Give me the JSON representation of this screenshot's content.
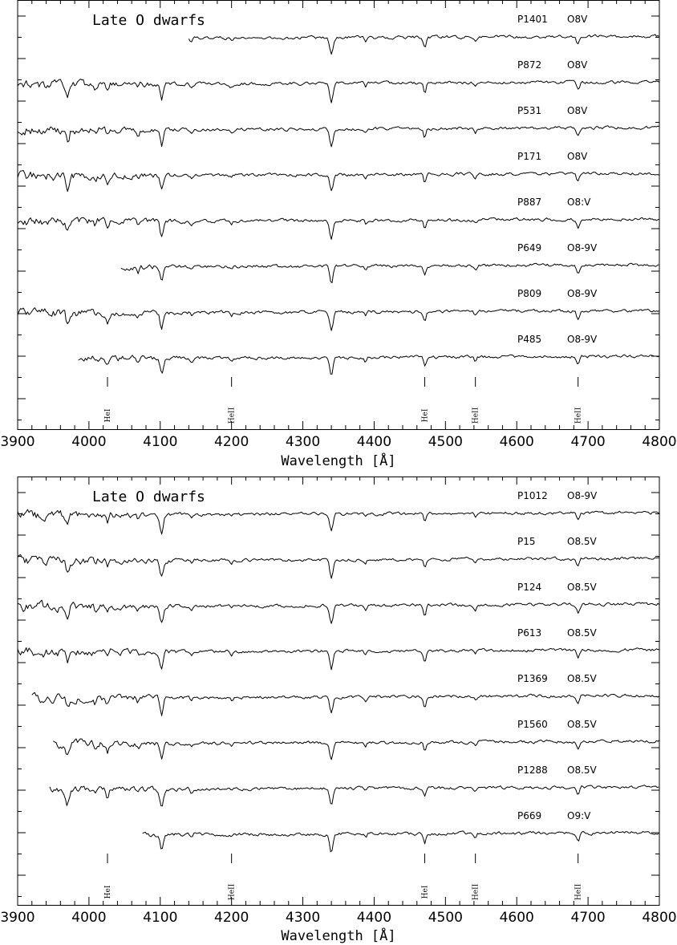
{
  "chart_data": [
    {
      "type": "line",
      "title": "Late O dwarfs",
      "xlabel": "Wavelength [Å]",
      "xlim": [
        3900,
        4800
      ],
      "xticks": [
        3900,
        4000,
        4100,
        4200,
        4300,
        4400,
        4500,
        4600,
        4700,
        4800
      ],
      "series": [
        {
          "name": "P1401",
          "spectral_type": "O8V",
          "x_start": 4140
        },
        {
          "name": "P872",
          "spectral_type": "O8V",
          "x_start": 3900
        },
        {
          "name": "P531",
          "spectral_type": "O8V",
          "x_start": 3900
        },
        {
          "name": "P171",
          "spectral_type": "O8V",
          "x_start": 3900
        },
        {
          "name": "P887",
          "spectral_type": "O8:V",
          "x_start": 3900
        },
        {
          "name": "P649",
          "spectral_type": "O8-9V",
          "x_start": 4045
        },
        {
          "name": "P809",
          "spectral_type": "O8-9V",
          "x_start": 3900
        },
        {
          "name": "P485",
          "spectral_type": "O8-9V",
          "x_start": 3985
        }
      ],
      "line_markers": [
        {
          "label": "HeI",
          "x": 4026
        },
        {
          "label": "HeII",
          "x": 4200
        },
        {
          "label": "HeI",
          "x": 4471
        },
        {
          "label": "HeII",
          "x": 4542
        },
        {
          "label": "HeII",
          "x": 4686
        }
      ]
    },
    {
      "type": "line",
      "title": "Late O dwarfs",
      "xlabel": "Wavelength [Å]",
      "xlim": [
        3900,
        4800
      ],
      "xticks": [
        3900,
        4000,
        4100,
        4200,
        4300,
        4400,
        4500,
        4600,
        4700,
        4800
      ],
      "series": [
        {
          "name": "P1012",
          "spectral_type": "O8-9V",
          "x_start": 3900
        },
        {
          "name": "P15",
          "spectral_type": "O8.5V",
          "x_start": 3900
        },
        {
          "name": "P124",
          "spectral_type": "O8.5V",
          "x_start": 3900
        },
        {
          "name": "P613",
          "spectral_type": "O8.5V",
          "x_start": 3900
        },
        {
          "name": "P1369",
          "spectral_type": "O8.5V",
          "x_start": 3920
        },
        {
          "name": "P1560",
          "spectral_type": "O8.5V",
          "x_start": 3950
        },
        {
          "name": "P1288",
          "spectral_type": "O8.5V",
          "x_start": 3945
        },
        {
          "name": "P669",
          "spectral_type": "O9:V",
          "x_start": 4075
        }
      ],
      "line_markers": [
        {
          "label": "HeI",
          "x": 4026
        },
        {
          "label": "HeII",
          "x": 4200
        },
        {
          "label": "HeI",
          "x": 4471
        },
        {
          "label": "HeII",
          "x": 4542
        },
        {
          "label": "HeII",
          "x": 4686
        }
      ]
    }
  ]
}
